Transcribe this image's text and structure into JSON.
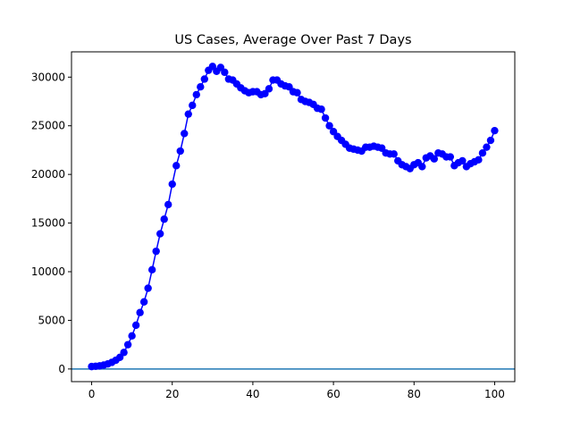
{
  "chart_data": {
    "type": "line",
    "title": "US Cases, Average Over Past 7 Days",
    "xlabel": "",
    "ylabel": "",
    "xlim": [
      -5,
      105
    ],
    "ylim": [
      -1300,
      32600
    ],
    "xticks": [
      0,
      20,
      40,
      60,
      80,
      100
    ],
    "yticks": [
      0,
      5000,
      10000,
      15000,
      20000,
      25000,
      30000
    ],
    "grid": false,
    "legend": "none",
    "series_color": "#0000ff",
    "hline": {
      "y": 0,
      "color": "#1f77b4"
    },
    "series": [
      {
        "x": [
          0,
          1,
          2,
          3,
          4,
          5,
          6,
          7,
          8,
          9,
          10,
          11,
          12,
          13,
          14,
          15,
          16,
          17,
          18,
          19,
          20,
          21,
          22,
          23,
          24,
          25,
          26,
          27,
          28,
          29,
          30,
          31,
          32,
          33,
          34,
          35,
          36,
          37,
          38,
          39,
          40,
          41,
          42,
          43,
          44,
          45,
          46,
          47,
          48,
          49,
          50,
          51,
          52,
          53,
          54,
          55,
          56,
          57,
          58,
          59,
          60,
          61,
          62,
          63,
          64,
          65,
          66,
          67,
          68,
          69,
          70,
          71,
          72,
          73,
          74,
          75,
          76,
          77,
          78,
          79,
          80,
          81,
          82,
          83,
          84,
          85,
          86,
          87,
          88,
          89,
          90,
          91,
          92,
          93,
          94,
          95,
          96,
          97,
          98,
          99,
          100
        ],
        "y": [
          250,
          280,
          320,
          400,
          520,
          680,
          900,
          1200,
          1700,
          2500,
          3400,
          4500,
          5800,
          6900,
          8300,
          10200,
          12100,
          13900,
          15400,
          16900,
          19000,
          20900,
          22400,
          24200,
          26200,
          27100,
          28200,
          29000,
          29800,
          30700,
          31100,
          30600,
          31000,
          30500,
          29800,
          29700,
          29300,
          28900,
          28600,
          28400,
          28500,
          28500,
          28200,
          28300,
          28800,
          29700,
          29700,
          29300,
          29100,
          29000,
          28500,
          28400,
          27700,
          27500,
          27400,
          27200,
          26800,
          26700,
          25800,
          25000,
          24400,
          23900,
          23500,
          23100,
          22700,
          22600,
          22500,
          22400,
          22800,
          22800,
          22900,
          22800,
          22700,
          22200,
          22100,
          22100,
          21400,
          21000,
          20800,
          20600,
          21000,
          21200,
          20800,
          21700,
          21900,
          21600,
          22200,
          22100,
          21800,
          21800,
          20900,
          21200,
          21400,
          20800,
          21100,
          21300,
          21500,
          22200,
          22800,
          23500,
          24500
        ]
      }
    ]
  }
}
